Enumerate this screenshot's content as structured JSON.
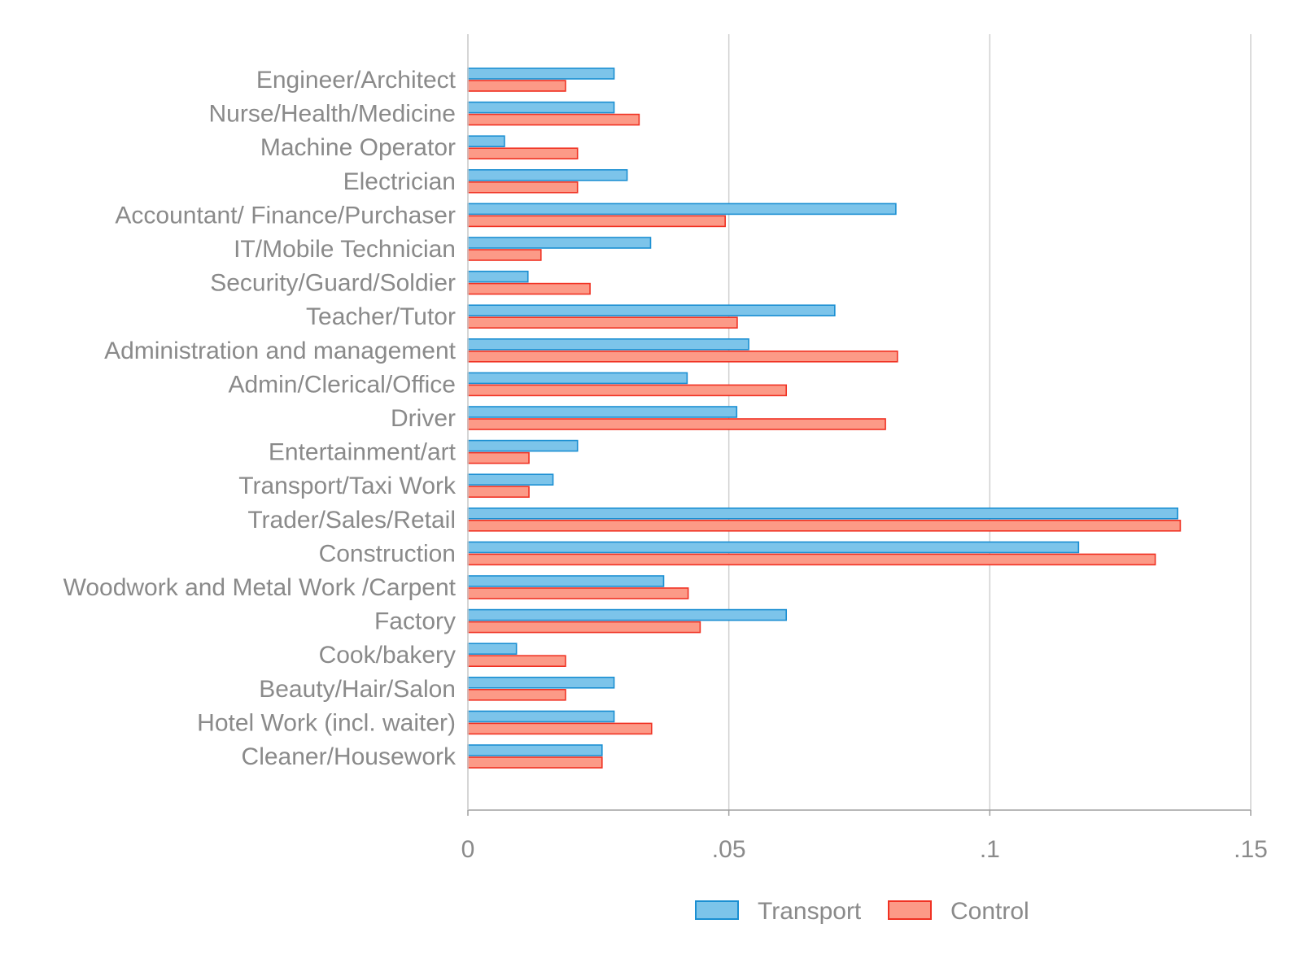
{
  "chart_data": {
    "type": "bar",
    "orientation": "horizontal",
    "categories": [
      "Engineer/Architect",
      "Nurse/Health/Medicine",
      "Machine Operator",
      "Electrician",
      "Accountant/ Finance/Purchaser",
      "IT/Mobile Technician",
      "Security/Guard/Soldier",
      "Teacher/Tutor",
      "Administration and management",
      "Admin/Clerical/Office",
      "Driver",
      "Entertainment/art",
      "Transport/Taxi Work",
      "Trader/Sales/Retail",
      "Construction",
      "Woodwork and Metal Work /Carpent",
      "Factory",
      "Cook/bakery",
      "Beauty/Hair/Salon",
      "Hotel Work (incl. waiter)",
      "Cleaner/Housework"
    ],
    "series": [
      {
        "name": "Transport",
        "color": "#7cc4ea",
        "stroke": "#1b8fd2",
        "values": [
          0.028,
          0.028,
          0.007,
          0.0305,
          0.082,
          0.035,
          0.0115,
          0.0703,
          0.0538,
          0.042,
          0.0515,
          0.021,
          0.0163,
          0.136,
          0.117,
          0.0375,
          0.061,
          0.0093,
          0.028,
          0.028,
          0.0257
        ]
      },
      {
        "name": "Control",
        "color": "#fc9a87",
        "stroke": "#f03223",
        "values": [
          0.0187,
          0.0328,
          0.021,
          0.021,
          0.0493,
          0.014,
          0.0234,
          0.0516,
          0.0823,
          0.061,
          0.08,
          0.0117,
          0.0117,
          0.1365,
          0.1317,
          0.0422,
          0.0445,
          0.0187,
          0.0187,
          0.0352,
          0.0257
        ]
      }
    ],
    "xlim": [
      0,
      0.15
    ],
    "xticks": [
      {
        "value": 0,
        "label": "0"
      },
      {
        "value": 0.05,
        "label": ".05"
      },
      {
        "value": 0.1,
        "label": ".1"
      },
      {
        "value": 0.15,
        "label": ".15"
      }
    ],
    "grid": true,
    "legend_position": "bottom-center",
    "title": "",
    "xlabel": "",
    "ylabel": "",
    "colors": {
      "gridline": "#d0d0d0",
      "axis": "#a0a0a0",
      "text": "#8a8a8a"
    }
  }
}
